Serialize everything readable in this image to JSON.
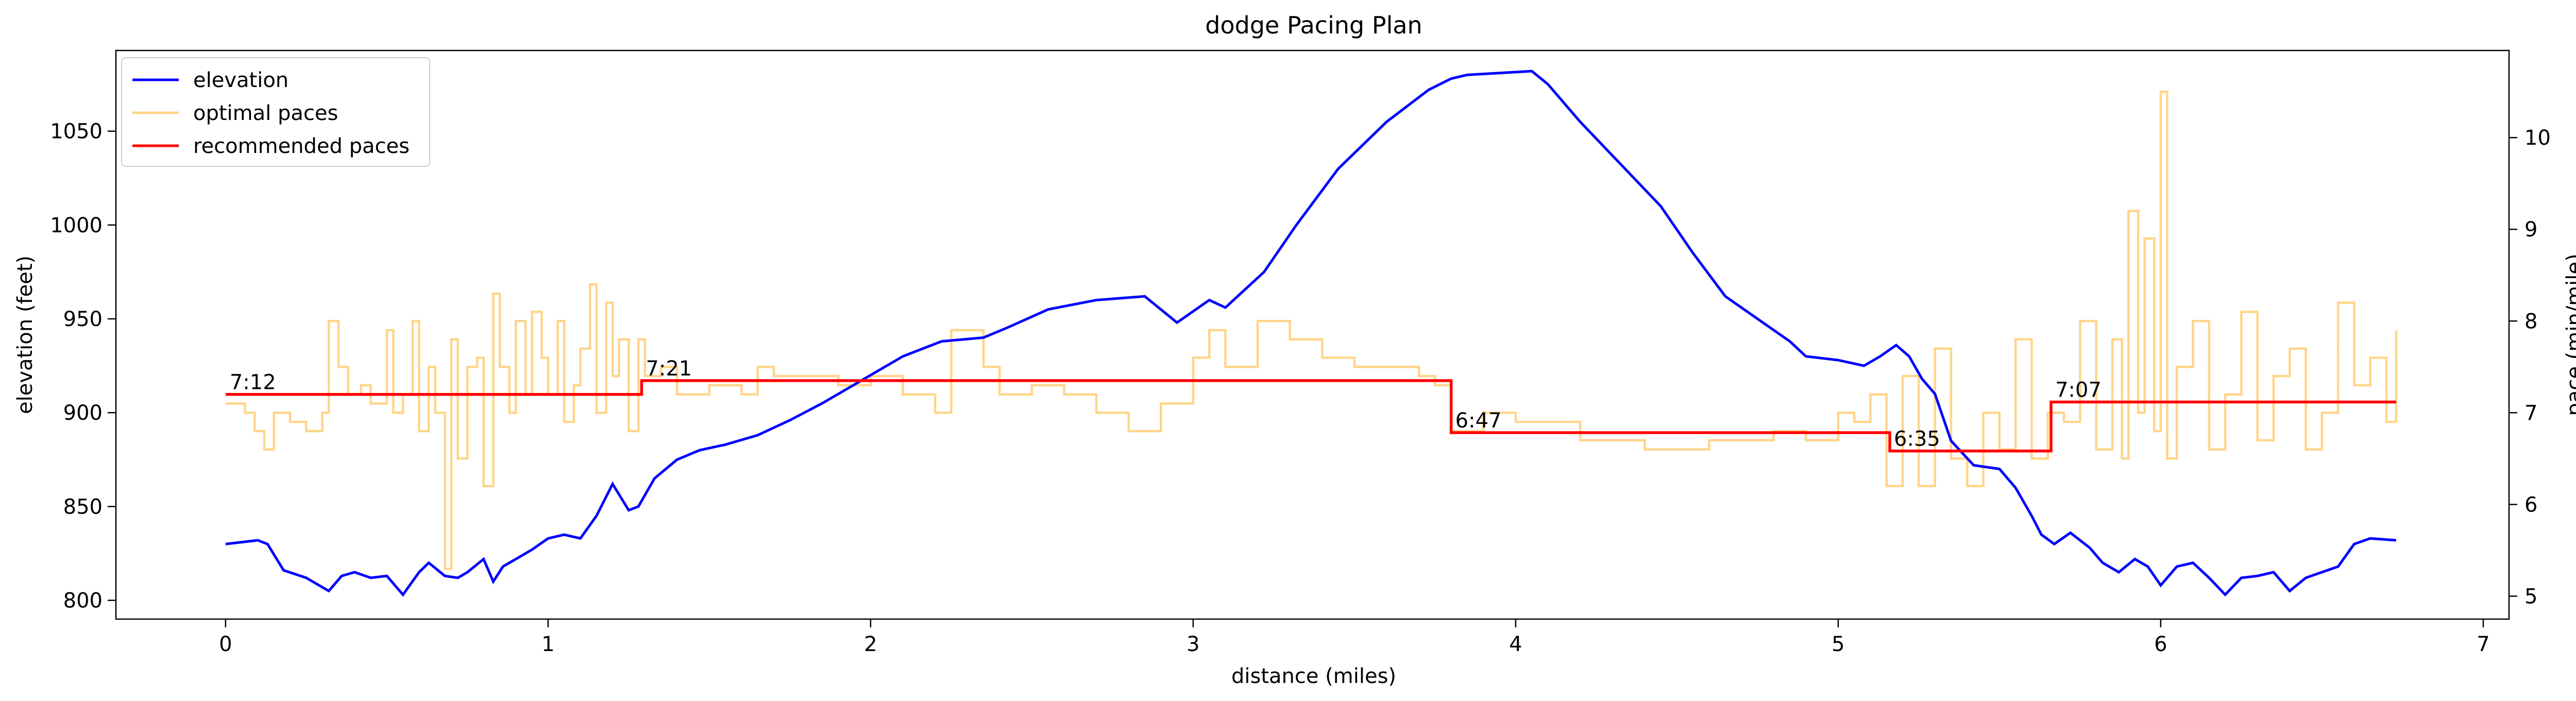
{
  "chart_data": {
    "type": "line",
    "title": "dodge Pacing Plan",
    "xlabel": "distance (miles)",
    "ylabel_left": "elevation (feet)",
    "ylabel_right": "pace (min/mile)",
    "xlim": [
      -0.34,
      7.08
    ],
    "ylim_left": [
      790,
      1093
    ],
    "ylim_right": [
      4.75,
      10.95
    ],
    "x_ticks": [
      0,
      1,
      2,
      3,
      4,
      5,
      6,
      7
    ],
    "y_ticks_left": [
      800,
      850,
      900,
      950,
      1000,
      1050
    ],
    "y_ticks_right": [
      5,
      6,
      7,
      8,
      9,
      10
    ],
    "grid": false,
    "legend_position": "upper-left",
    "legend": [
      {
        "label": "elevation",
        "color": "#0000ff"
      },
      {
        "label": "optimal paces",
        "color": "#ffd58a"
      },
      {
        "label": "recommended paces",
        "color": "#ff0000"
      }
    ],
    "series": [
      {
        "name": "elevation",
        "axis": "left",
        "color": "#0000ff",
        "x": [
          0,
          0.1,
          0.13,
          0.18,
          0.25,
          0.32,
          0.36,
          0.4,
          0.45,
          0.5,
          0.55,
          0.6,
          0.63,
          0.68,
          0.72,
          0.75,
          0.8,
          0.83,
          0.86,
          0.9,
          0.95,
          1.0,
          1.05,
          1.1,
          1.15,
          1.2,
          1.25,
          1.28,
          1.33,
          1.4,
          1.47,
          1.55,
          1.65,
          1.75,
          1.85,
          2.0,
          2.1,
          2.22,
          2.35,
          2.42,
          2.55,
          2.7,
          2.85,
          2.95,
          3.05,
          3.1,
          3.22,
          3.32,
          3.45,
          3.6,
          3.73,
          3.8,
          3.85,
          3.95,
          4.05,
          4.1,
          4.2,
          4.35,
          4.45,
          4.55,
          4.65,
          4.75,
          4.85,
          4.9,
          5.0,
          5.08,
          5.13,
          5.18,
          5.22,
          5.26,
          5.3,
          5.35,
          5.42,
          5.5,
          5.55,
          5.6,
          5.63,
          5.67,
          5.72,
          5.78,
          5.82,
          5.87,
          5.92,
          5.96,
          6.0,
          6.05,
          6.1,
          6.15,
          6.2,
          6.25,
          6.3,
          6.35,
          6.4,
          6.45,
          6.5,
          6.55,
          6.6,
          6.65,
          6.73
        ],
        "y": [
          830,
          832,
          830,
          816,
          812,
          805,
          813,
          815,
          812,
          813,
          803,
          815,
          820,
          813,
          812,
          815,
          822,
          810,
          818,
          822,
          827,
          833,
          835,
          833,
          845,
          862,
          848,
          850,
          865,
          875,
          880,
          883,
          888,
          896,
          905,
          920,
          930,
          938,
          940,
          945,
          955,
          960,
          962,
          948,
          960,
          956,
          975,
          1000,
          1030,
          1055,
          1072,
          1078,
          1080,
          1081,
          1082,
          1075,
          1055,
          1028,
          1010,
          985,
          962,
          950,
          938,
          930,
          928,
          925,
          930,
          936,
          930,
          918,
          910,
          885,
          872,
          870,
          860,
          845,
          835,
          830,
          836,
          828,
          820,
          815,
          822,
          818,
          808,
          818,
          820,
          812,
          803,
          812,
          813,
          815,
          805,
          812,
          815,
          818,
          830,
          833,
          832
        ]
      },
      {
        "name": "optimal paces",
        "axis": "right",
        "color": "#ffd58a",
        "x": [
          0,
          0.06,
          0.09,
          0.12,
          0.15,
          0.2,
          0.25,
          0.3,
          0.32,
          0.35,
          0.38,
          0.42,
          0.45,
          0.5,
          0.52,
          0.55,
          0.58,
          0.6,
          0.63,
          0.65,
          0.68,
          0.7,
          0.72,
          0.75,
          0.78,
          0.8,
          0.83,
          0.85,
          0.88,
          0.9,
          0.93,
          0.95,
          0.98,
          1.0,
          1.03,
          1.05,
          1.08,
          1.1,
          1.13,
          1.15,
          1.18,
          1.2,
          1.22,
          1.25,
          1.28,
          1.3,
          1.35,
          1.4,
          1.5,
          1.6,
          1.65,
          1.7,
          1.8,
          1.9,
          2.0,
          2.1,
          2.2,
          2.25,
          2.35,
          2.4,
          2.5,
          2.6,
          2.7,
          2.8,
          2.9,
          3.0,
          3.05,
          3.1,
          3.2,
          3.3,
          3.4,
          3.5,
          3.6,
          3.7,
          3.75,
          3.8,
          3.9,
          4.0,
          4.1,
          4.2,
          4.4,
          4.6,
          4.8,
          4.9,
          5.0,
          5.05,
          5.1,
          5.15,
          5.2,
          5.25,
          5.3,
          5.35,
          5.4,
          5.45,
          5.5,
          5.55,
          5.6,
          5.65,
          5.7,
          5.75,
          5.8,
          5.85,
          5.88,
          5.9,
          5.93,
          5.95,
          5.98,
          6.0,
          6.02,
          6.05,
          6.1,
          6.15,
          6.2,
          6.25,
          6.3,
          6.35,
          6.4,
          6.45,
          6.5,
          6.55,
          6.6,
          6.65,
          6.7,
          6.73
        ],
        "y": [
          7.1,
          7.0,
          6.8,
          6.6,
          7.0,
          6.9,
          6.8,
          7.0,
          8.0,
          7.5,
          7.2,
          7.3,
          7.1,
          7.9,
          7.0,
          7.2,
          8.0,
          6.8,
          7.5,
          7.0,
          5.3,
          7.8,
          6.5,
          7.5,
          7.6,
          6.2,
          8.3,
          7.5,
          7.0,
          8.0,
          7.2,
          8.1,
          7.6,
          7.2,
          8.0,
          6.9,
          7.3,
          7.7,
          8.4,
          7.0,
          8.2,
          7.4,
          7.8,
          6.8,
          7.8,
          7.4,
          7.5,
          7.2,
          7.3,
          7.2,
          7.5,
          7.4,
          7.4,
          7.3,
          7.4,
          7.2,
          7.0,
          7.9,
          7.5,
          7.2,
          7.3,
          7.2,
          7.0,
          6.8,
          7.1,
          7.6,
          7.9,
          7.5,
          8.0,
          7.8,
          7.6,
          7.5,
          7.5,
          7.4,
          7.3,
          6.8,
          7.0,
          6.9,
          6.9,
          6.7,
          6.6,
          6.7,
          6.8,
          6.7,
          7.0,
          6.9,
          7.2,
          6.2,
          7.4,
          6.2,
          7.7,
          6.5,
          6.2,
          7.0,
          6.6,
          7.8,
          6.5,
          7.0,
          6.9,
          8.0,
          6.6,
          7.8,
          6.5,
          9.2,
          7.0,
          8.9,
          6.8,
          10.5,
          6.5,
          7.5,
          8.0,
          6.6,
          7.2,
          8.1,
          6.7,
          7.4,
          7.7,
          6.6,
          7.0,
          8.2,
          7.3,
          7.6,
          6.9,
          7.9
        ]
      },
      {
        "name": "recommended paces",
        "axis": "right",
        "color": "#ff0000",
        "x": [
          0,
          1.29,
          1.29,
          3.8,
          3.8,
          5.16,
          5.16,
          5.66,
          5.66,
          6.73
        ],
        "y": [
          7.2,
          7.2,
          7.35,
          7.35,
          6.783,
          6.783,
          6.583,
          6.583,
          7.117,
          7.117
        ]
      }
    ],
    "annotations": [
      {
        "text": "7:12",
        "x": 0.0,
        "y": 7.2
      },
      {
        "text": "7:21",
        "x": 1.29,
        "y": 7.35
      },
      {
        "text": "6:47",
        "x": 3.8,
        "y": 6.783
      },
      {
        "text": "6:35",
        "x": 5.16,
        "y": 6.583
      },
      {
        "text": "7:07",
        "x": 5.66,
        "y": 7.117
      }
    ]
  }
}
